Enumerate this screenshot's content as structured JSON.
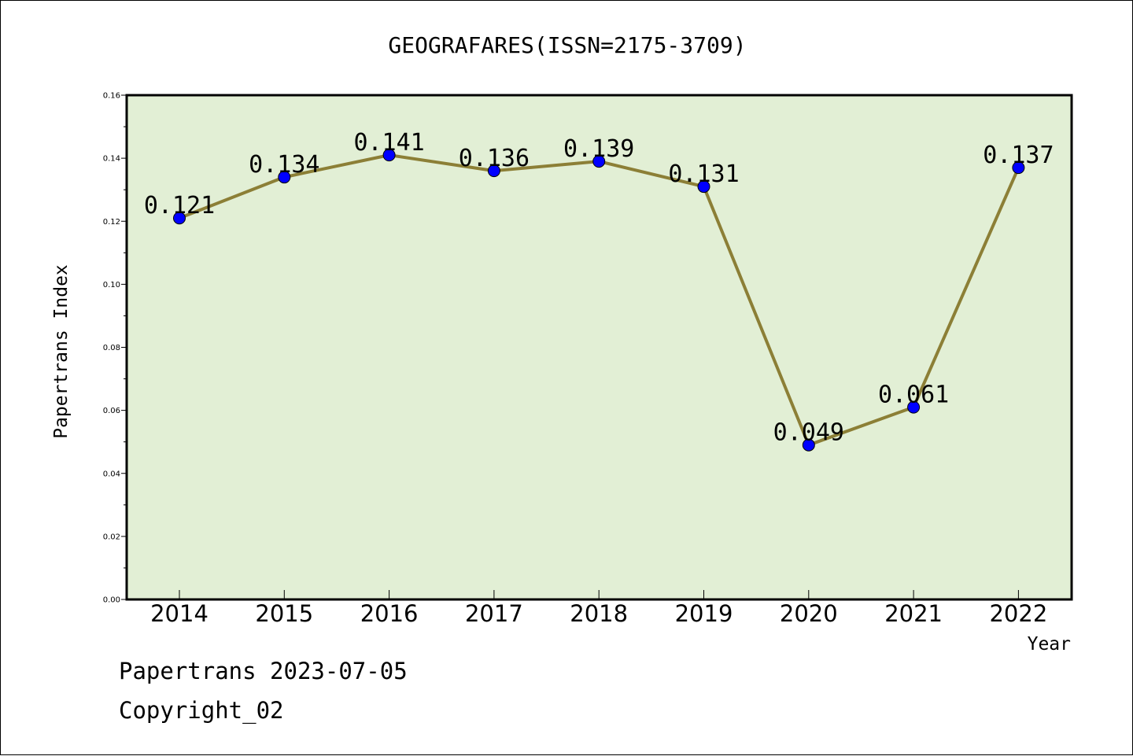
{
  "chart_data": {
    "type": "line",
    "title": "GEOGRAFARES(ISSN=2175-3709)",
    "xlabel": "Year",
    "ylabel": "Papertrans Index",
    "categories": [
      "2014",
      "2015",
      "2016",
      "2017",
      "2018",
      "2019",
      "2020",
      "2021",
      "2022"
    ],
    "values": [
      0.121,
      0.134,
      0.141,
      0.136,
      0.139,
      0.131,
      0.049,
      0.061,
      0.137
    ],
    "data_labels": [
      "0.121",
      "0.134",
      "0.141",
      "0.136",
      "0.139",
      "0.131",
      "0.049",
      "0.061",
      "0.137"
    ],
    "ylim": [
      0,
      0.16
    ],
    "yticks": [
      "0.00",
      "0.02",
      "0.04",
      "0.06",
      "0.08",
      "0.10",
      "0.12",
      "0.14",
      "0.16"
    ],
    "grid": false,
    "legend": "none",
    "colors": {
      "plot_background": "#e2efd5",
      "line": "#8c7f36",
      "marker": "#0000ff"
    }
  },
  "footer": {
    "date_line": "Papertrans 2023-07-05",
    "copyright": "Copyright_02"
  }
}
